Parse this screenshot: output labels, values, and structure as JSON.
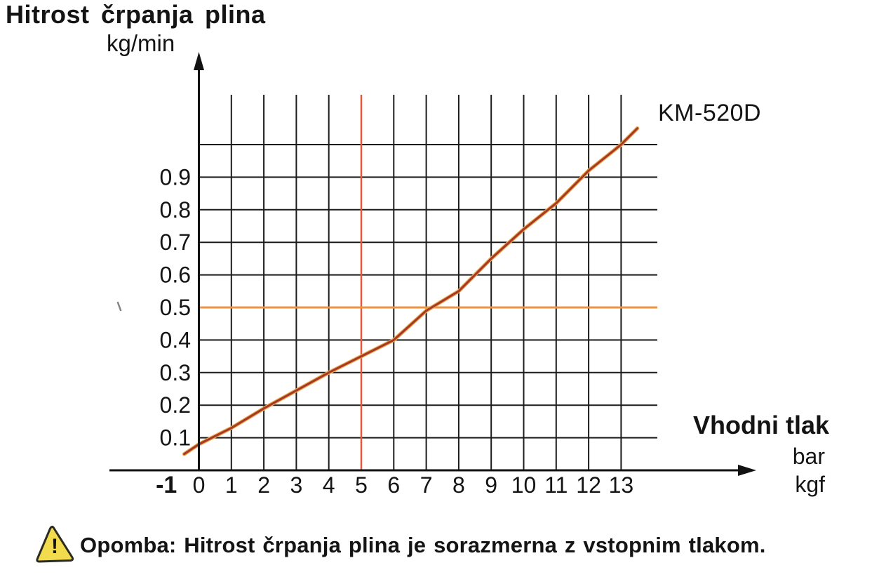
{
  "header": {
    "title": "Hitrost črpanja plina",
    "y_unit": "kg/min"
  },
  "chart_data": {
    "type": "line",
    "title": "Hitrost črpanja plina",
    "ylabel": "kg/min",
    "xlabel": "Vhodni tlak",
    "x_units": [
      "bar",
      "kgf"
    ],
    "xlim": [
      -1,
      14.1
    ],
    "ylim": [
      0,
      1.15
    ],
    "grid": true,
    "legend_position": "none",
    "series": [
      {
        "name": "KM-520D",
        "color": "#a63826",
        "highlight_color": "#e9a84e",
        "x": [
          -0.45,
          0,
          1,
          2,
          3,
          4,
          5,
          6,
          7,
          8,
          9,
          10,
          11,
          12,
          13,
          13.5
        ],
        "y": [
          0.05,
          0.08,
          0.13,
          0.19,
          0.245,
          0.3,
          0.35,
          0.4,
          0.49,
          0.55,
          0.65,
          0.74,
          0.82,
          0.92,
          1.0,
          1.05
        ]
      }
    ],
    "x_ticks": [
      {
        "label": "-1",
        "value": -1,
        "bold": true
      },
      {
        "label": "0",
        "value": 0
      },
      {
        "label": "1",
        "value": 1
      },
      {
        "label": "2",
        "value": 2
      },
      {
        "label": "3",
        "value": 3
      },
      {
        "label": "4",
        "value": 4
      },
      {
        "label": "5",
        "value": 5
      },
      {
        "label": "6",
        "value": 6
      },
      {
        "label": "7",
        "value": 7
      },
      {
        "label": "8",
        "value": 8
      },
      {
        "label": "9",
        "value": 9
      },
      {
        "label": "10",
        "value": 10
      },
      {
        "label": "11",
        "value": 11
      },
      {
        "label": "12",
        "value": 12
      },
      {
        "label": "13",
        "value": 13
      }
    ],
    "y_ticks": [
      {
        "label": "0.1",
        "value": 0.1
      },
      {
        "label": "0.2",
        "value": 0.2
      },
      {
        "label": "0.3",
        "value": 0.3
      },
      {
        "label": "0.4",
        "value": 0.4
      },
      {
        "label": "0.5",
        "value": 0.5
      },
      {
        "label": "0.6",
        "value": 0.6
      },
      {
        "label": "0.7",
        "value": 0.7
      },
      {
        "label": "0.8",
        "value": 0.8
      },
      {
        "label": "0.9",
        "value": 0.9
      }
    ],
    "x_gridlines": [
      1,
      2,
      3,
      4,
      5,
      6,
      7,
      8,
      9,
      10,
      11,
      12,
      13
    ],
    "y_gridlines": [
      0.1,
      0.2,
      0.3,
      0.4,
      0.5,
      0.6,
      0.7,
      0.8,
      0.9,
      1.0
    ],
    "reference_lines": {
      "vertical_x": 5,
      "vertical_color": "#e2583a",
      "horizontal_y": 0.5,
      "horizontal_color": "#ee9440"
    },
    "colors": {
      "grid": "#1c1c1c",
      "axis": "#121212"
    }
  },
  "note": {
    "text": "Opomba: Hitrost črpanja plina je sorazmerna z vstopnim tlakom.",
    "icon": "warning-triangle-icon",
    "icon_fill": "#f2dc4e",
    "icon_mark": "!"
  }
}
